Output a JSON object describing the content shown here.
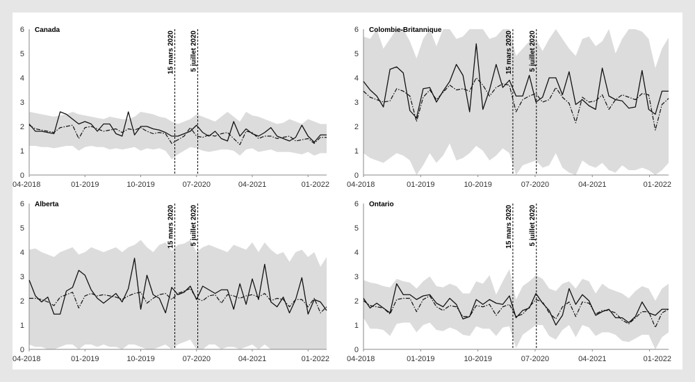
{
  "chart_data": [
    {
      "type": "line",
      "title": "Canada",
      "ylim": [
        0,
        6
      ],
      "yticks": [
        "0",
        "1",
        "2",
        "3",
        "4",
        "5",
        "6"
      ],
      "xticks": [
        "04-2018",
        "01-2019",
        "10-2019",
        "07-2020",
        "04-2021",
        "01-2022"
      ],
      "x_start": "04-2018",
      "events": [
        {
          "label": "15 mars 2020",
          "month_index": 23.5
        },
        {
          "label": "5 juillet 2020",
          "month_index": 27.2
        }
      ],
      "series": [
        {
          "name": "observed",
          "style": "solid",
          "values": [
            2.1,
            1.8,
            1.8,
            1.75,
            1.7,
            2.6,
            2.5,
            2.3,
            2.1,
            2.2,
            2.1,
            1.8,
            2.1,
            2.1,
            1.7,
            1.6,
            2.6,
            1.65,
            2.0,
            2.0,
            1.9,
            1.85,
            1.75,
            1.6,
            1.6,
            1.7,
            1.8,
            2.05,
            1.75,
            1.6,
            1.8,
            1.5,
            1.4,
            2.2,
            1.6,
            1.9,
            1.7,
            1.6,
            1.75,
            1.95,
            1.6,
            1.5,
            1.4,
            1.55,
            2.05,
            1.6,
            1.35,
            1.65,
            1.65
          ]
        },
        {
          "name": "expected",
          "style": "dashdot",
          "values": [
            2.05,
            1.9,
            1.85,
            1.8,
            1.75,
            1.95,
            2.0,
            2.05,
            1.5,
            1.95,
            2.0,
            1.9,
            1.8,
            1.85,
            1.9,
            1.75,
            1.9,
            1.85,
            1.95,
            1.8,
            1.7,
            1.75,
            1.7,
            1.3,
            1.45,
            1.6,
            1.95,
            1.6,
            1.55,
            1.65,
            1.6,
            1.7,
            1.75,
            1.5,
            1.25,
            1.8,
            1.75,
            1.5,
            1.6,
            1.6,
            1.5,
            1.55,
            1.6,
            1.4,
            1.45,
            1.5,
            1.3,
            1.55,
            1.55
          ]
        },
        {
          "name": "interval_upper",
          "style": "band",
          "values": [
            2.6,
            2.55,
            2.5,
            2.45,
            2.4,
            2.45,
            2.5,
            2.6,
            2.5,
            2.45,
            2.4,
            2.35,
            2.3,
            2.4,
            2.35,
            2.3,
            2.3,
            2.4,
            2.6,
            2.55,
            2.5,
            2.4,
            2.35,
            2.2,
            2.1,
            2.2,
            2.3,
            2.5,
            2.4,
            2.3,
            2.2,
            2.4,
            2.6,
            2.4,
            2.2,
            2.6,
            2.45,
            2.4,
            2.3,
            2.2,
            2.1,
            2.15,
            2.3,
            2.2,
            2.1,
            2.3,
            2.2,
            2.1,
            2.1
          ]
        },
        {
          "name": "interval_lower",
          "style": "band",
          "values": [
            1.2,
            1.2,
            1.15,
            1.15,
            1.1,
            1.15,
            1.2,
            1.2,
            1.0,
            1.15,
            1.2,
            1.15,
            1.15,
            1.05,
            1.1,
            1.05,
            1.1,
            1.15,
            1.0,
            1.1,
            1.05,
            1.1,
            1.0,
            0.65,
            0.85,
            1.0,
            1.15,
            1.1,
            1.0,
            0.95,
            1.0,
            1.05,
            1.05,
            1.0,
            0.8,
            1.05,
            1.1,
            0.95,
            1.0,
            1.05,
            0.95,
            0.95,
            0.95,
            0.9,
            0.85,
            0.95,
            0.8,
            0.9,
            0.9
          ]
        }
      ]
    },
    {
      "type": "line",
      "title": "Colombie-Britannique",
      "ylim": [
        0,
        6
      ],
      "yticks": [
        "0",
        "1",
        "2",
        "3",
        "4",
        "5",
        "6"
      ],
      "xticks": [
        "04-2018",
        "01-2019",
        "10-2019",
        "07-2020",
        "04-2021",
        "01-2022"
      ],
      "x_start": "04-2018",
      "events": [
        {
          "label": "15 mars 2020",
          "month_index": 23.5
        },
        {
          "label": "5 juillet 2020",
          "month_index": 27.2
        }
      ],
      "series": [
        {
          "name": "observed",
          "style": "solid",
          "values": [
            3.85,
            3.5,
            3.25,
            2.8,
            4.35,
            4.45,
            4.2,
            2.65,
            2.35,
            3.55,
            3.6,
            3.0,
            3.45,
            3.85,
            4.55,
            4.1,
            2.6,
            5.4,
            2.7,
            3.5,
            4.55,
            3.6,
            3.9,
            3.25,
            3.25,
            4.1,
            3.0,
            3.2,
            4.0,
            4.0,
            3.3,
            4.25,
            2.9,
            3.1,
            2.85,
            2.7,
            4.4,
            3.25,
            3.1,
            3.05,
            2.75,
            2.8,
            4.3,
            2.7,
            2.5,
            3.45,
            3.45
          ]
        },
        {
          "name": "expected",
          "style": "dashdot",
          "values": [
            3.45,
            3.2,
            3.1,
            3.0,
            3.05,
            3.55,
            3.45,
            3.25,
            2.2,
            3.2,
            3.5,
            3.1,
            3.4,
            3.7,
            3.5,
            3.55,
            3.45,
            4.0,
            3.7,
            3.25,
            3.6,
            3.75,
            3.7,
            2.6,
            3.1,
            3.25,
            3.35,
            3.0,
            3.1,
            3.6,
            3.2,
            2.95,
            2.15,
            3.2,
            3.0,
            3.05,
            3.3,
            2.7,
            3.1,
            3.3,
            3.2,
            3.1,
            3.35,
            3.3,
            1.85,
            2.9,
            3.15
          ]
        },
        {
          "name": "interval_upper",
          "style": "band",
          "values": [
            5.7,
            5.6,
            6.0,
            5.2,
            5.6,
            6.0,
            6.0,
            5.5,
            4.8,
            5.6,
            6.0,
            5.3,
            6.0,
            6.0,
            5.6,
            5.7,
            6.0,
            6.0,
            6.0,
            5.6,
            5.7,
            6.0,
            6.0,
            4.9,
            5.2,
            5.5,
            5.6,
            5.1,
            5.6,
            6.0,
            5.6,
            5.2,
            4.9,
            5.6,
            5.7,
            5.3,
            5.5,
            6.0,
            5.0,
            5.6,
            6.0,
            6.0,
            5.9,
            5.6,
            4.4,
            5.2,
            5.65
          ]
        },
        {
          "name": "interval_lower",
          "style": "band",
          "values": [
            0.9,
            0.7,
            0.6,
            0.5,
            0.7,
            0.9,
            0.8,
            0.6,
            0.0,
            0.4,
            0.9,
            0.5,
            0.8,
            1.3,
            0.6,
            0.7,
            0.9,
            1.2,
            1.0,
            0.6,
            0.8,
            1.1,
            0.9,
            0.0,
            0.4,
            0.5,
            0.6,
            0.3,
            0.4,
            0.9,
            0.3,
            0.1,
            0.0,
            0.6,
            0.4,
            0.3,
            0.5,
            0.2,
            0.1,
            0.4,
            0.2,
            0.2,
            0.3,
            0.2,
            0.0,
            0.2,
            0.5
          ]
        }
      ]
    },
    {
      "type": "line",
      "title": "Alberta",
      "ylim": [
        0,
        6
      ],
      "yticks": [
        "0",
        "1",
        "2",
        "3",
        "4",
        "5",
        "6"
      ],
      "xticks": [
        "04-2018",
        "01-2019",
        "10-2019",
        "07-2020",
        "04-2021",
        "01-2022"
      ],
      "x_start": "04-2018",
      "events": [
        {
          "label": "15 mars 2020",
          "month_index": 23.5
        },
        {
          "label": "5 juillet 2020",
          "month_index": 27.2
        }
      ],
      "series": [
        {
          "name": "observed",
          "style": "solid",
          "values": [
            2.85,
            2.2,
            1.95,
            2.15,
            1.45,
            1.45,
            2.4,
            2.55,
            3.25,
            3.05,
            2.45,
            2.1,
            1.9,
            2.1,
            2.3,
            1.95,
            2.5,
            3.75,
            1.65,
            3.05,
            2.25,
            2.1,
            1.5,
            2.55,
            2.25,
            2.35,
            2.6,
            2.05,
            2.6,
            2.45,
            2.3,
            2.45,
            2.45,
            1.65,
            2.7,
            1.85,
            2.9,
            2.05,
            3.5,
            1.95,
            1.75,
            2.15,
            1.5,
            2.05,
            2.95,
            1.45,
            2.05,
            1.95,
            1.6
          ]
        },
        {
          "name": "expected",
          "style": "dashdot",
          "values": [
            2.1,
            2.1,
            2.05,
            1.95,
            1.8,
            2.15,
            2.25,
            2.35,
            1.7,
            2.2,
            2.3,
            2.2,
            2.25,
            2.2,
            2.15,
            2.05,
            2.2,
            2.3,
            2.35,
            1.9,
            2.1,
            2.25,
            2.3,
            2.05,
            2.3,
            2.4,
            2.5,
            2.1,
            2.0,
            2.2,
            2.25,
            1.9,
            2.25,
            2.2,
            2.1,
            2.2,
            2.25,
            2.15,
            2.3,
            2.0,
            2.1,
            2.05,
            1.75,
            2.05,
            2.05,
            1.75,
            2.1,
            1.5,
            1.75
          ]
        },
        {
          "name": "interval_upper",
          "style": "band",
          "values": [
            4.1,
            4.15,
            4.0,
            3.9,
            3.8,
            4.0,
            4.1,
            4.2,
            3.9,
            4.0,
            4.2,
            4.1,
            4.0,
            4.1,
            4.2,
            4.0,
            4.2,
            4.3,
            4.5,
            4.2,
            4.0,
            4.3,
            4.4,
            4.05,
            4.3,
            4.35,
            4.5,
            4.0,
            4.2,
            4.3,
            4.2,
            4.1,
            4.0,
            4.3,
            4.2,
            4.1,
            4.4,
            4.0,
            4.4,
            4.1,
            3.9,
            4.0,
            3.6,
            4.0,
            4.1,
            3.8,
            4.0,
            3.4,
            3.8
          ]
        },
        {
          "name": "interval_lower",
          "style": "band",
          "values": [
            0.2,
            0.1,
            0.1,
            0.0,
            0.0,
            0.1,
            0.2,
            0.2,
            0.0,
            0.2,
            0.2,
            0.1,
            0.2,
            0.1,
            0.1,
            0.0,
            0.2,
            0.2,
            0.1,
            0.0,
            0.0,
            0.1,
            0.2,
            0.0,
            0.2,
            0.3,
            0.4,
            0.0,
            0.0,
            0.2,
            0.2,
            0.0,
            0.1,
            0.1,
            0.0,
            0.1,
            0.2,
            0.0,
            0.2,
            0.0,
            0.0,
            0.0,
            0.0,
            0.0,
            0.0,
            0.0,
            0.0,
            0.0,
            0.0
          ]
        }
      ]
    },
    {
      "type": "line",
      "title": "Ontario",
      "ylim": [
        0,
        6
      ],
      "yticks": [
        "0",
        "1",
        "2",
        "3",
        "4",
        "5",
        "6"
      ],
      "xticks": [
        "04-2018",
        "01-2019",
        "10-2019",
        "07-2020",
        "04-2021",
        "01-2022"
      ],
      "x_start": "04-2018",
      "events": [
        {
          "label": "15 mars 2020",
          "month_index": 23.5
        },
        {
          "label": "5 juillet 2020",
          "month_index": 27.2
        }
      ],
      "series": [
        {
          "name": "observed",
          "style": "solid",
          "values": [
            2.1,
            1.7,
            1.9,
            1.7,
            1.5,
            2.7,
            2.25,
            2.25,
            2.05,
            2.2,
            2.25,
            1.9,
            1.75,
            2.1,
            1.85,
            1.25,
            1.35,
            2.05,
            1.85,
            2.05,
            1.9,
            1.85,
            2.2,
            1.3,
            1.6,
            1.7,
            2.3,
            1.9,
            1.6,
            1.0,
            1.4,
            2.5,
            1.85,
            2.25,
            2.0,
            1.4,
            1.55,
            1.65,
            1.3,
            1.3,
            1.1,
            1.35,
            1.95,
            1.5,
            1.4,
            1.65,
            1.65
          ]
        },
        {
          "name": "expected",
          "style": "dashdot",
          "values": [
            2.0,
            1.8,
            1.75,
            1.7,
            1.45,
            2.05,
            2.1,
            2.1,
            1.55,
            2.05,
            2.2,
            1.75,
            1.6,
            1.8,
            1.75,
            1.35,
            1.35,
            1.8,
            1.75,
            1.85,
            1.4,
            1.75,
            1.85,
            1.35,
            1.45,
            1.75,
            2.05,
            1.95,
            1.5,
            1.25,
            1.75,
            1.95,
            1.35,
            1.95,
            1.9,
            1.45,
            1.6,
            1.6,
            1.5,
            1.2,
            1.05,
            1.3,
            1.55,
            1.55,
            0.9,
            1.5,
            1.65
          ]
        },
        {
          "name": "interval_upper",
          "style": "band",
          "values": [
            2.85,
            2.75,
            2.7,
            2.6,
            2.55,
            2.9,
            2.8,
            2.75,
            2.5,
            2.8,
            3.0,
            2.6,
            2.55,
            2.7,
            2.6,
            2.3,
            2.3,
            2.8,
            2.7,
            3.05,
            2.25,
            2.8,
            3.3,
            2.05,
            2.6,
            2.8,
            3.05,
            2.9,
            2.5,
            2.4,
            2.7,
            2.8,
            2.5,
            2.9,
            2.8,
            2.3,
            2.7,
            2.5,
            2.4,
            2.3,
            2.1,
            2.4,
            2.6,
            2.5,
            2.0,
            2.5,
            2.7
          ]
        },
        {
          "name": "interval_lower",
          "style": "band",
          "values": [
            1.3,
            0.85,
            0.85,
            0.8,
            0.55,
            1.05,
            1.1,
            1.1,
            0.7,
            1.0,
            1.1,
            0.8,
            0.75,
            0.9,
            0.8,
            0.6,
            0.55,
            0.95,
            0.85,
            0.85,
            0.55,
            0.9,
            0.95,
            0.05,
            0.6,
            0.8,
            1.0,
            1.0,
            0.55,
            0.4,
            0.8,
            1.0,
            0.5,
            1.0,
            0.9,
            0.55,
            0.7,
            0.7,
            0.6,
            0.35,
            0.3,
            0.45,
            0.6,
            0.6,
            0.0,
            0.5,
            0.7
          ]
        }
      ]
    }
  ]
}
